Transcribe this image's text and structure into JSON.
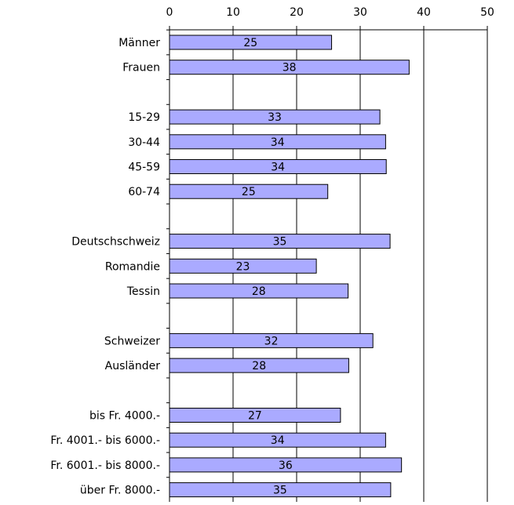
{
  "chart_data": {
    "type": "bar",
    "orientation": "horizontal",
    "x_axis_position": "top",
    "xlim": [
      0,
      50
    ],
    "xticks": [
      0,
      10,
      20,
      30,
      40,
      50
    ],
    "grid": true,
    "bar_color": "#aaaaff",
    "bar_border_color": "#000000",
    "categories": [
      "Männer",
      "Frauen",
      "",
      "15-29",
      "30-44",
      "45-59",
      "60-74",
      "",
      "Deutschschweiz",
      "Romandie",
      "Tessin",
      "",
      "Schweizer",
      "Ausländer",
      "",
      "bis Fr. 4000.-",
      "Fr. 4001.- bis  6000.-",
      "Fr. 6001.- bis  8000.-",
      "über Fr. 8000.-"
    ],
    "values": [
      25.5,
      37.7,
      null,
      33.1,
      34.0,
      34.1,
      24.9,
      null,
      34.7,
      23.1,
      28.1,
      null,
      32.0,
      28.2,
      null,
      26.9,
      34.0,
      36.5,
      34.8
    ],
    "value_labels": [
      "25",
      "38",
      "",
      "33",
      "34",
      "34",
      "25",
      "",
      "35",
      "23",
      "28",
      "",
      "32",
      "28",
      "",
      "27",
      "34",
      "36",
      "35"
    ]
  }
}
